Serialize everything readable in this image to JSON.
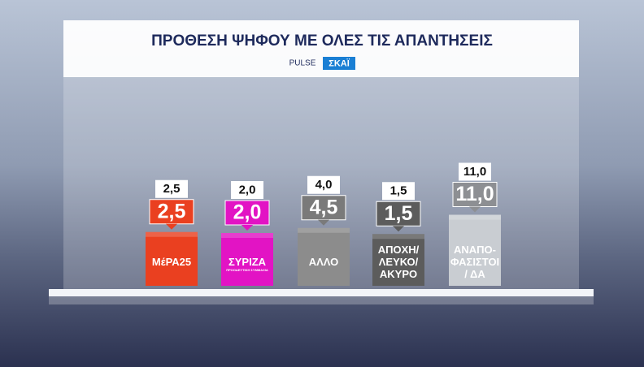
{
  "chart_data": {
    "type": "bar",
    "title": "ΠΡΟΘΕΣΗ ΨΗΦΟΥ ΜΕ ΟΛΕΣ ΤΙΣ ΑΠΑΝΤΗΣΕΙΣ",
    "logos": [
      "PULSE",
      "ΣΚΑΪ"
    ],
    "categories": [
      "ΜέΡΑ25",
      "ΣΥΡΙΖΑ",
      "ΑΛΛΟ",
      "ΑΠΟΧΗ/\nΛΕΥΚΟ/\nΑΚΥΡΟ",
      "ΑΝΑΠΟ-\nΦΑΣΙΣΤΟΙ\n/ ΔΑ"
    ],
    "syriza_tagline": "ΠΡΟΟΔΕΥΤΙΚΗ ΣΥΜΜΑΧΙΑ",
    "colors": [
      "#ea4020",
      "#e214c4",
      "#8c8c8c",
      "#5c5c5c",
      "#c9cdd2"
    ],
    "label_colors": [
      "#ea4020",
      "#e214c4",
      "#7a7a7a",
      "#5c5c5c",
      "#8d8f93"
    ],
    "series": [
      {
        "values": [
          2.5,
          2.0,
          4.5,
          1.5,
          11.0
        ],
        "value_labels": [
          "2,5",
          "2,0",
          "4,5",
          "1,5",
          "11,0"
        ]
      },
      {
        "values": [
          2.5,
          2.0,
          4.0,
          1.5,
          11.0
        ],
        "value_labels": [
          "2,5",
          "2,0",
          "4,0",
          "1,5",
          "11,0"
        ]
      }
    ]
  }
}
